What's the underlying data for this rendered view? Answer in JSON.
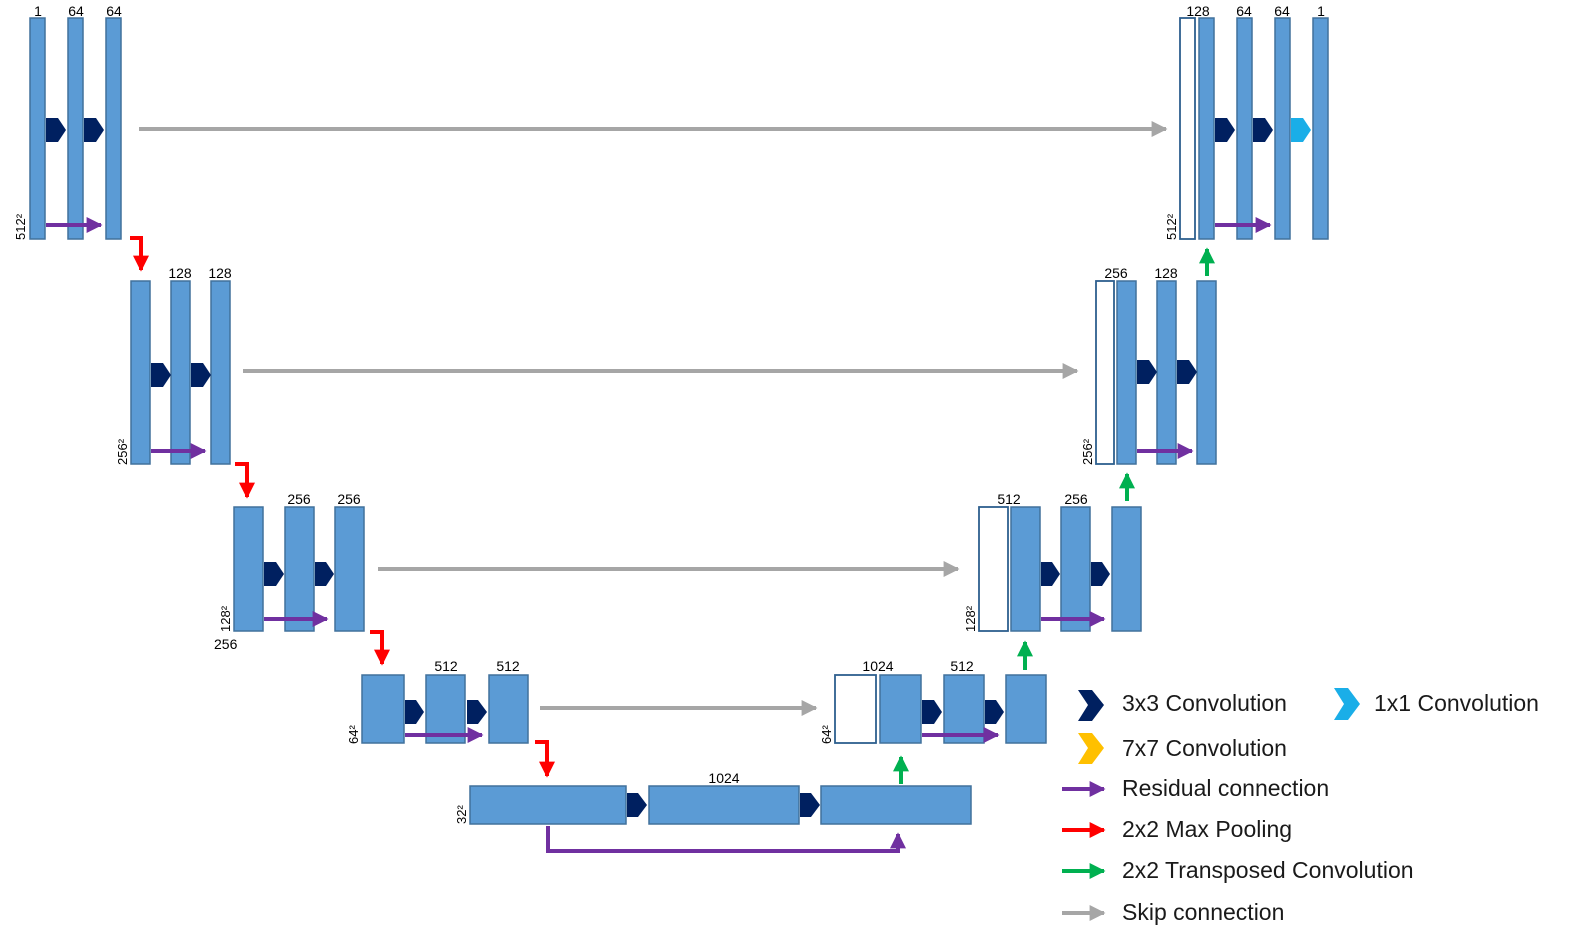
{
  "colors": {
    "block_fill": "#5b9bd5",
    "block_stroke": "#41719c",
    "concat_stroke": "#2e5f8e",
    "conv3x3": "#002060",
    "conv1x1": "#1aaee8",
    "conv7x7": "#ffc000",
    "residual": "#7030a0",
    "maxpool": "#ff0000",
    "transposed": "#00b050",
    "skip": "#a6a6a6"
  },
  "labels": {
    "enc1_in": "1",
    "enc1_c1": "64",
    "enc1_c2": "64",
    "enc1_dim": "512²",
    "enc2_c1": "128",
    "enc2_c2": "128",
    "enc2_dim": "256²",
    "enc3_c1": "256",
    "enc3_c2": "256",
    "enc3_dim": "128²",
    "enc3_extra": "256",
    "enc4_c1": "512",
    "enc4_c2": "512",
    "enc4_dim": "64²",
    "bottleneck_c": "1024",
    "bottleneck_dim": "32²",
    "dec4_cat": "1024",
    "dec4_c": "512",
    "dec4_dim": "64²",
    "dec3_cat": "512",
    "dec3_c": "256",
    "dec3_dim": "128²",
    "dec2_cat": "256",
    "dec2_c": "128",
    "dec2_dim": "256²",
    "dec1_cat": "128",
    "dec1_c1": "64",
    "dec1_c2": "64",
    "dec1_out": "1",
    "dec1_dim": "512²"
  },
  "legend": [
    {
      "icon": "conv3x3-arrow-icon",
      "label": "3x3 Convolution"
    },
    {
      "icon": "conv1x1-arrow-icon",
      "label": "1x1 Convolution"
    },
    {
      "icon": "conv7x7-arrow-icon",
      "label": "7x7 Convolution"
    },
    {
      "icon": "residual-arrow-icon",
      "label": "Residual connection"
    },
    {
      "icon": "maxpool-arrow-icon",
      "label": "2x2 Max Pooling"
    },
    {
      "icon": "transposed-arrow-icon",
      "label": "2x2 Transposed Convolution"
    },
    {
      "icon": "skip-arrow-icon",
      "label": "Skip connection"
    }
  ]
}
